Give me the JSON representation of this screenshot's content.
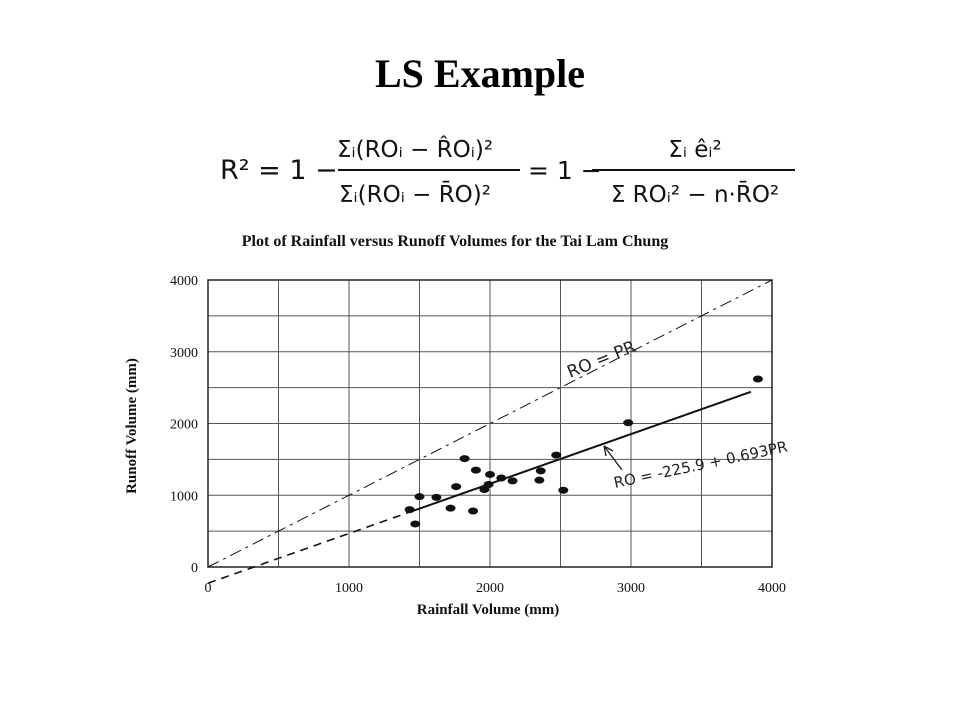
{
  "slide": {
    "title": "LS Example"
  },
  "formula": {
    "lhs": "R² = 1 −",
    "frac1_num": "Σᵢ(ROᵢ − R̂Oᵢ)²",
    "frac1_den": "Σᵢ(ROᵢ − R̄O)²",
    "middle": "= 1 −",
    "frac2_num": "Σᵢ êᵢ²",
    "frac2_den": "Σ ROᵢ² − n·R̄O²"
  },
  "chart_data": {
    "type": "scatter",
    "title": "Plot of Rainfall versus Runoff Volumes for the Tai Lam Chung",
    "xlabel": "Rainfall Volume (mm)",
    "ylabel": "Runoff Volume (mm)",
    "xlim": [
      0,
      4000
    ],
    "ylim": [
      0,
      4000
    ],
    "x_ticks": [
      0,
      1000,
      2000,
      3000,
      4000
    ],
    "y_ticks": [
      0,
      1000,
      2000,
      3000,
      4000
    ],
    "grid": true,
    "points": [
      {
        "x": 1430,
        "y": 800
      },
      {
        "x": 1470,
        "y": 600
      },
      {
        "x": 1500,
        "y": 980
      },
      {
        "x": 1620,
        "y": 970
      },
      {
        "x": 1720,
        "y": 820
      },
      {
        "x": 1760,
        "y": 1120
      },
      {
        "x": 1820,
        "y": 1510
      },
      {
        "x": 1880,
        "y": 780
      },
      {
        "x": 1900,
        "y": 1350
      },
      {
        "x": 1960,
        "y": 1080
      },
      {
        "x": 1990,
        "y": 1150
      },
      {
        "x": 2000,
        "y": 1290
      },
      {
        "x": 2080,
        "y": 1240
      },
      {
        "x": 2160,
        "y": 1200
      },
      {
        "x": 2350,
        "y": 1210
      },
      {
        "x": 2360,
        "y": 1340
      },
      {
        "x": 2470,
        "y": 1560
      },
      {
        "x": 2520,
        "y": 1070
      },
      {
        "x": 2980,
        "y": 2010
      },
      {
        "x": 3900,
        "y": 2620
      }
    ],
    "lines": [
      {
        "label": "RO = PR",
        "style": "dash-dot",
        "x": [
          0,
          4000
        ],
        "y": [
          0,
          4000
        ]
      },
      {
        "label": "RO = -225.9 + 0.693PR",
        "style": "solid",
        "x": [
          1450,
          3850
        ],
        "y": [
          779,
          2442
        ]
      },
      {
        "label": "",
        "style": "dashed",
        "x": [
          0,
          1450
        ],
        "y": [
          -226,
          779
        ]
      }
    ],
    "annotations": [
      "RO = PR",
      "RO = -225.9 + 0.693PR"
    ]
  }
}
